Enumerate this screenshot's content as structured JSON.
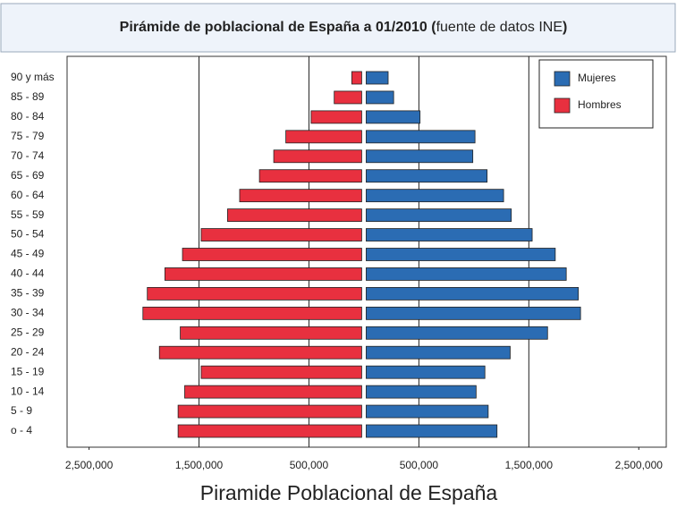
{
  "chart_data": {
    "type": "pyramid",
    "title": {
      "main": "Pirámide de poblacional de España a  01/2010 (",
      "source": "fuente de datos INE",
      "close": ")"
    },
    "caption": "Piramide Poblacional de España",
    "categories": [
      "90 y más",
      "85 - 89",
      "80 - 84",
      "75 - 79",
      "70 - 74",
      "65 - 69",
      "60 - 64",
      "55 - 59",
      "50 - 54",
      "45 - 49",
      "40 - 44",
      "35 - 39",
      "30 - 34",
      "25 - 29",
      "20 - 24",
      "15 - 19",
      "10 - 14",
      "5 - 9",
      "o - 4"
    ],
    "series": [
      {
        "name": "Mujeres",
        "color": "#2b6cb3",
        "side": "right",
        "values": [
          200000,
          250000,
          490000,
          990000,
          970000,
          1100000,
          1250000,
          1320000,
          1510000,
          1720000,
          1820000,
          1930000,
          1950000,
          1650000,
          1310000,
          1080000,
          1000000,
          1110000,
          1190000
        ]
      },
      {
        "name": "Hombres",
        "color": "#e8303f",
        "side": "left",
        "values": [
          90000,
          250000,
          460000,
          690000,
          800000,
          930000,
          1110000,
          1220000,
          1460000,
          1630000,
          1790000,
          1950000,
          1990000,
          1650000,
          1840000,
          1460000,
          1610000,
          1670000,
          1670000
        ]
      }
    ],
    "xlim": [
      -2700000,
      2750000
    ],
    "xticks": [
      {
        "value": -2500000,
        "label": "2,500,000"
      },
      {
        "value": -1500000,
        "label": "1,500,000"
      },
      {
        "value": -500000,
        "label": "500,000"
      },
      {
        "value": 500000,
        "label": "500,000"
      },
      {
        "value": 1500000,
        "label": "1,500,000"
      },
      {
        "value": 2500000,
        "label": "2,500,000"
      }
    ],
    "grid": true,
    "legend": "upper right"
  }
}
